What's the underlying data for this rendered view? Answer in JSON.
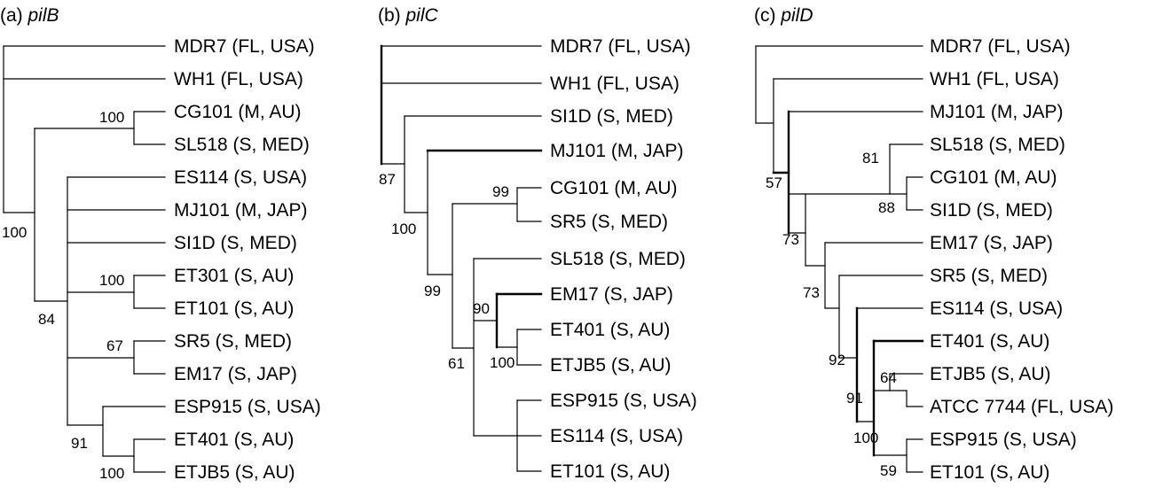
{
  "panels": [
    {
      "prefix": "(a) ",
      "gene": "pilB",
      "leaves": [
        "MDR7 (FL, USA)",
        "WH1 (FL, USA)",
        "CG101 (M, AU)",
        "SL518 (S, MED)",
        "ES114 (S, USA)",
        "MJ101 (M, JAP)",
        "SI1D (S, MED)",
        "ET301 (S, AU)",
        "ET101 (S, AU)",
        "SR5 (S, MED)",
        "EM17 (S, JAP)",
        "ESP915 (S, USA)",
        "ET401 (S, AU)",
        "ETJB5 (S, AU)"
      ],
      "bootstrap": [
        "100",
        "100",
        "84",
        "100",
        "67",
        "91",
        "100"
      ]
    },
    {
      "prefix": "(b) ",
      "gene": "pilC",
      "leaves": [
        "MDR7 (FL, USA)",
        "WH1 (FL, USA)",
        "SI1D (S, MED)",
        "MJ101 (M, JAP)",
        "CG101 (M, AU)",
        "SR5 (S, MED)",
        "SL518 (S, MED)",
        "EM17 (S, JAP)",
        "ET401 (S, AU)",
        "ETJB5 (S, AU)",
        "ESP915 (S, USA)",
        "ES114 (S, USA)",
        "ET101 (S, AU)"
      ],
      "bootstrap": [
        "87",
        "99",
        "100",
        "99",
        "90",
        "100",
        "61"
      ]
    },
    {
      "prefix": "(c) ",
      "gene": "pilD",
      "leaves": [
        "MDR7 (FL, USA)",
        "WH1 (FL, USA)",
        "MJ101 (M, JAP)",
        "SL518 (S, MED)",
        "CG101 (M, AU)",
        "SI1D (S, MED)",
        "EM17 (S, JAP)",
        "SR5 (S, MED)",
        "ES114 (S, USA)",
        "ET401 (S, AU)",
        "ETJB5 (S, AU)",
        "ATCC 7744 (FL, USA)",
        "ESP915 (S, USA)",
        "ET101 (S, AU)"
      ],
      "bootstrap": [
        "57",
        "81",
        "88",
        "73",
        "73",
        "92",
        "91",
        "64",
        "100",
        "59"
      ]
    }
  ]
}
